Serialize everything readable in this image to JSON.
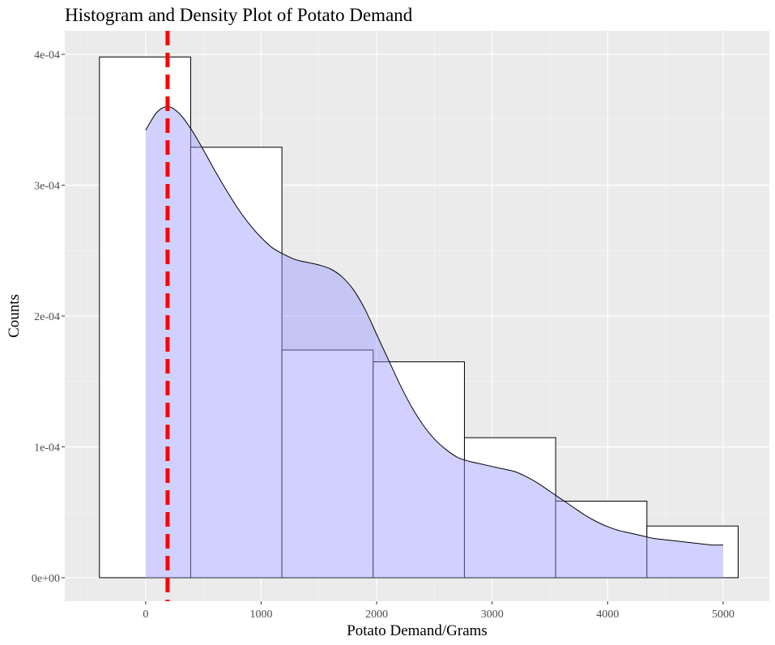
{
  "chart_data": {
    "type": "histogram",
    "title": "Histogram and Density Plot of Potato Demand",
    "xlabel": "Potato Demand/Grams",
    "ylabel": "Counts",
    "xlim": [
      -700,
      5400
    ],
    "ylim": [
      -1.8e-05,
      0.000418
    ],
    "x_ticks": [
      0,
      1000,
      2000,
      3000,
      4000,
      5000
    ],
    "x_tick_labels": [
      "0",
      "1000",
      "2000",
      "3000",
      "4000",
      "5000"
    ],
    "y_ticks": [
      0,
      0.0001,
      0.0002,
      0.0003,
      0.0004
    ],
    "y_tick_labels": [
      "0e+00",
      "1e-04",
      "2e-04",
      "3e-04",
      "4e-04"
    ],
    "grid": true,
    "background_color": "#ebebeb",
    "histogram": {
      "bin_edges": [
        -400,
        390,
        1180,
        1970,
        2760,
        3550,
        4340,
        5130
      ],
      "values": [
        0.000398,
        0.000329,
        0.000174,
        0.000165,
        0.000107,
        5.85e-05,
        3.95e-05
      ],
      "fill": "#ffffff",
      "edge_color": "#000000"
    },
    "density": {
      "x": [
        0,
        100,
        200,
        300,
        400,
        500,
        600,
        700,
        800,
        900,
        1000,
        1100,
        1200,
        1300,
        1400,
        1500,
        1600,
        1700,
        1800,
        1900,
        2000,
        2100,
        2200,
        2300,
        2400,
        2500,
        2600,
        2700,
        2800,
        2900,
        3000,
        3100,
        3200,
        3300,
        3400,
        3500,
        3600,
        3700,
        3800,
        3900,
        4000,
        4100,
        4200,
        4300,
        4400,
        4500,
        4600,
        4700,
        4800,
        4900,
        5000
      ],
      "y": [
        0.000342,
        0.000356,
        0.00036,
        0.000354,
        0.000342,
        0.000327,
        0.000311,
        0.000296,
        0.000282,
        0.00027,
        0.00026,
        0.000252,
        0.000247,
        0.000243,
        0.000241,
        0.000239,
        0.000236,
        0.00023,
        0.00022,
        0.000205,
        0.000186,
        0.000167,
        0.000148,
        0.000131,
        0.000117,
        0.000106,
        9.8e-05,
        9.2e-05,
        8.9e-05,
        8.7e-05,
        8.5e-05,
        8.3e-05,
        8.1e-05,
        7.7e-05,
        7.2e-05,
        6.6e-05,
        6e-05,
        5.4e-05,
        4.8e-05,
        4.3e-05,
        3.9e-05,
        3.6e-05,
        3.4e-05,
        3.2e-05,
        3e-05,
        2.9e-05,
        2.8e-05,
        2.7e-05,
        2.6e-05,
        2.5e-05,
        2.5e-05
      ],
      "fill": "#9999ff",
      "fill_opacity": 0.45,
      "line_color": "#000000"
    },
    "vline": {
      "x": 190,
      "color": "#ff0000",
      "style": "dashed"
    }
  }
}
